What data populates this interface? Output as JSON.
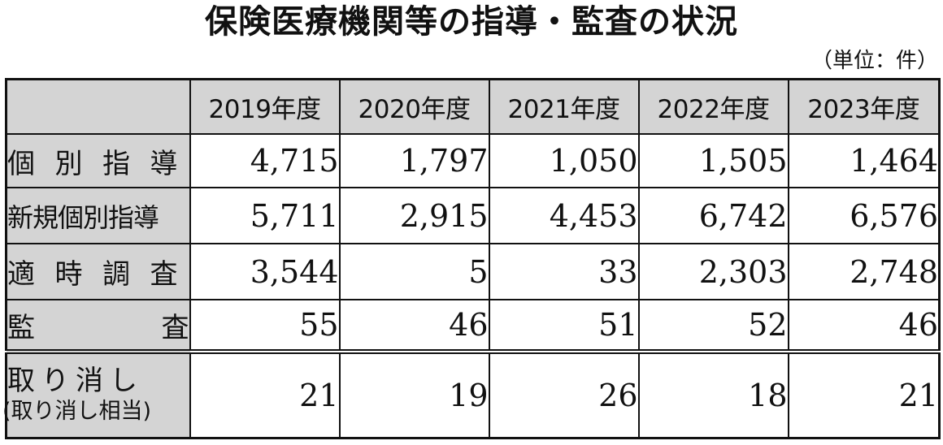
{
  "title": "保険医療機関等の指導・監査の状況",
  "unit": "（単位：件）",
  "table": {
    "columns": [
      "2019年度",
      "2020年度",
      "2021年度",
      "2022年度",
      "2023年度"
    ],
    "rows": [
      {
        "label": "個別指導",
        "values": [
          "4,715",
          "1,797",
          "1,050",
          "1,505",
          "1,464"
        ]
      },
      {
        "label": "新規個別指導",
        "values": [
          "5,711",
          "2,915",
          "4,453",
          "6,742",
          "6,576"
        ]
      },
      {
        "label": "適時調査",
        "values": [
          "3,544",
          "5",
          "33",
          "2,303",
          "2,748"
        ]
      },
      {
        "label_parts": [
          "監",
          "査"
        ],
        "values": [
          "55",
          "46",
          "51",
          "52",
          "46"
        ]
      },
      {
        "label": "取り消し",
        "sublabel": "(取り消し相当)",
        "values": [
          "21",
          "19",
          "26",
          "18",
          "21"
        ]
      }
    ]
  }
}
